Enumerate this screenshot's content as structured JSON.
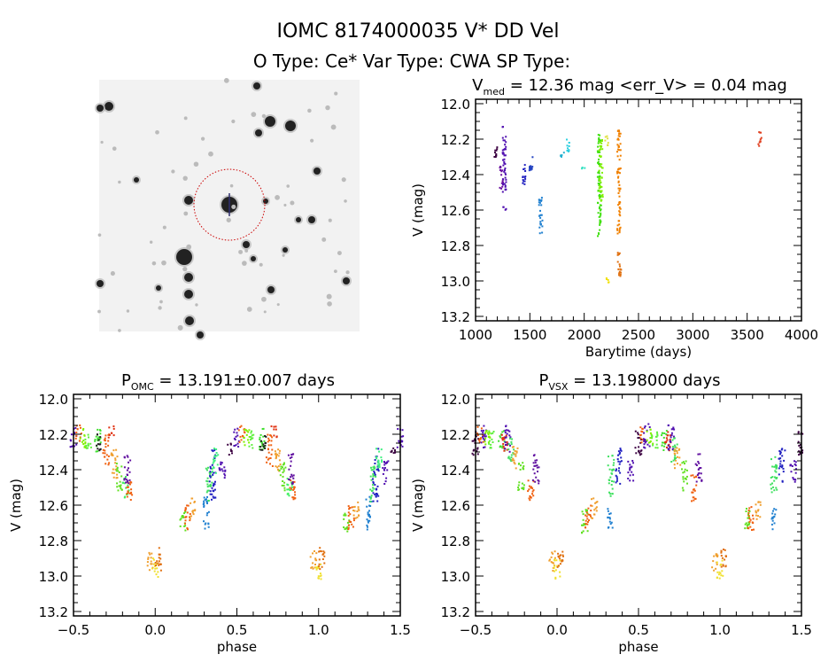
{
  "header": {
    "title": "IOMC 8174000035    V* DD Vel",
    "subtitle": "O Type: Ce*   Var Type: CWA   SP Type:"
  },
  "image_panel": {
    "circle_color": "#cc0000"
  },
  "chart_data": [
    {
      "type": "scatter",
      "title_main": "V",
      "title_sub": "med",
      "title_rest": " = 12.36 mag <err_V> = 0.04 mag",
      "xlabel": "Barytime (days)",
      "ylabel": "V (mag)",
      "xlim": [
        1000,
        4000
      ],
      "ylim": [
        13.225,
        11.975
      ],
      "y_inverted": true,
      "xticks": [
        1000,
        1500,
        2000,
        2500,
        3000,
        3500,
        4000
      ],
      "xtick_labels": [
        "1000",
        "1500",
        "2000",
        "2500",
        "3000",
        "3500",
        "4000"
      ],
      "yticks": [
        12.0,
        12.2,
        12.4,
        12.6,
        12.8,
        13.0,
        13.2
      ],
      "ytick_labels": [
        "12.0",
        "12.2",
        "12.4",
        "12.6",
        "12.8",
        "13.0",
        "13.2"
      ],
      "xminor": 100,
      "yminor": 0.05,
      "clusters": [
        {
          "x": 1190,
          "ymin": 12.24,
          "ymax": 12.32,
          "color": "#3a0040"
        },
        {
          "x": 1240,
          "ymin": 12.35,
          "ymax": 12.48,
          "color": "#6a10a0"
        },
        {
          "x": 1265,
          "ymin": 12.13,
          "ymax": 12.5,
          "color": "#5010b0"
        },
        {
          "x": 1268,
          "ymin": 12.58,
          "ymax": 12.6,
          "color": "#5010b0"
        },
        {
          "x": 1450,
          "ymin": 12.34,
          "ymax": 12.46,
          "color": "#2020c0"
        },
        {
          "x": 1510,
          "ymin": 12.29,
          "ymax": 12.38,
          "color": "#2040c0"
        },
        {
          "x": 1600,
          "ymin": 12.53,
          "ymax": 12.74,
          "color": "#2080d0"
        },
        {
          "x": 1800,
          "ymin": 12.26,
          "ymax": 12.3,
          "color": "#20b0d0"
        },
        {
          "x": 1850,
          "ymin": 12.2,
          "ymax": 12.28,
          "color": "#30d0e0"
        },
        {
          "x": 1990,
          "ymin": 12.34,
          "ymax": 12.37,
          "color": "#30e0c0"
        },
        {
          "x": 2140,
          "ymin": 12.15,
          "ymax": 12.75,
          "color": "#40e010"
        },
        {
          "x": 2155,
          "ymin": 12.2,
          "ymax": 12.55,
          "color": "#80f000"
        },
        {
          "x": 2210,
          "ymin": 12.18,
          "ymax": 12.24,
          "color": "#e0e040"
        },
        {
          "x": 2215,
          "ymin": 12.98,
          "ymax": 13.02,
          "color": "#f0e000"
        },
        {
          "x": 2320,
          "ymin": 12.15,
          "ymax": 12.75,
          "color": "#f08000"
        },
        {
          "x": 2325,
          "ymin": 12.84,
          "ymax": 12.98,
          "color": "#e07010"
        },
        {
          "x": 3620,
          "ymin": 12.16,
          "ymax": 12.24,
          "color": "#e04020"
        }
      ]
    },
    {
      "type": "scatter",
      "title_main": "P",
      "title_sub": "OMC",
      "title_rest": " = 13.191±0.007 days",
      "xlabel": "phase",
      "ylabel": "V (mag)",
      "xlim": [
        -0.5,
        1.5
      ],
      "ylim": [
        13.225,
        11.975
      ],
      "y_inverted": true,
      "xticks": [
        -0.5,
        0.0,
        0.5,
        1.0,
        1.5
      ],
      "xtick_labels": [
        "−0.5",
        "0.0",
        "0.5",
        "1.0",
        "1.5"
      ],
      "yticks": [
        12.0,
        12.2,
        12.4,
        12.6,
        12.8,
        13.0,
        13.2
      ],
      "ytick_labels": [
        "12.0",
        "12.2",
        "12.4",
        "12.6",
        "12.8",
        "13.0",
        "13.2"
      ],
      "xminor": 0.1,
      "yminor": 0.05,
      "phase_folded_repeat": true,
      "clusters": [
        {
          "x": 0.5,
          "ymin": 12.16,
          "ymax": 12.28,
          "color": "#5010b0"
        },
        {
          "x": 0.53,
          "ymin": 12.15,
          "ymax": 12.25,
          "color": "#f06010"
        },
        {
          "x": 0.56,
          "ymin": 12.17,
          "ymax": 12.28,
          "color": "#80f000"
        },
        {
          "x": 0.59,
          "ymin": 12.18,
          "ymax": 12.28,
          "color": "#60f040"
        },
        {
          "x": 0.65,
          "ymin": 12.16,
          "ymax": 12.3,
          "color": "#40e030"
        },
        {
          "x": 0.66,
          "ymin": 12.2,
          "ymax": 12.3,
          "color": "#202020"
        },
        {
          "x": 0.7,
          "ymin": 12.2,
          "ymax": 12.38,
          "color": "#f06010"
        },
        {
          "x": 0.73,
          "ymin": 12.15,
          "ymax": 12.22,
          "color": "#e03010"
        },
        {
          "x": 0.75,
          "ymin": 12.28,
          "ymax": 12.45,
          "color": "#f0a030"
        },
        {
          "x": 0.78,
          "ymin": 12.36,
          "ymax": 12.52,
          "color": "#60e020"
        },
        {
          "x": 0.82,
          "ymin": 12.44,
          "ymax": 12.56,
          "color": "#40f060"
        },
        {
          "x": 0.84,
          "ymin": 12.45,
          "ymax": 12.58,
          "color": "#f06010"
        },
        {
          "x": 0.83,
          "ymin": 12.31,
          "ymax": 12.48,
          "color": "#6010a0"
        },
        {
          "x": 0.97,
          "ymin": 12.86,
          "ymax": 12.97,
          "color": "#f0a030"
        },
        {
          "x": 1.0,
          "ymin": 12.9,
          "ymax": 13.02,
          "color": "#f0e030"
        },
        {
          "x": 1.02,
          "ymin": 12.84,
          "ymax": 12.97,
          "color": "#e07010"
        },
        {
          "x": 0.17,
          "ymin": 12.62,
          "ymax": 12.75,
          "color": "#60e020"
        },
        {
          "x": 0.2,
          "ymin": 12.6,
          "ymax": 12.74,
          "color": "#f06010"
        },
        {
          "x": 0.23,
          "ymin": 12.56,
          "ymax": 12.68,
          "color": "#f0a030"
        },
        {
          "x": 0.31,
          "ymin": 12.55,
          "ymax": 12.74,
          "color": "#2080d0"
        },
        {
          "x": 0.33,
          "ymin": 12.38,
          "ymax": 12.58,
          "color": "#40e060"
        },
        {
          "x": 0.35,
          "ymin": 12.28,
          "ymax": 12.58,
          "color": "#2020c0"
        },
        {
          "x": 0.37,
          "ymin": 12.28,
          "ymax": 12.42,
          "color": "#40f080"
        },
        {
          "x": 0.41,
          "ymin": 12.35,
          "ymax": 12.48,
          "color": "#5010b0"
        },
        {
          "x": 0.46,
          "ymin": 12.25,
          "ymax": 12.32,
          "color": "#3a0040"
        }
      ]
    },
    {
      "type": "scatter",
      "title_main": "P",
      "title_sub": "VSX",
      "title_rest": " = 13.198000 days",
      "xlabel": "phase",
      "ylabel": "V (mag)",
      "xlim": [
        -0.5,
        1.5
      ],
      "ylim": [
        13.225,
        11.975
      ],
      "y_inverted": true,
      "xticks": [
        -0.5,
        0.0,
        0.5,
        1.0,
        1.5
      ],
      "xtick_labels": [
        "−0.5",
        "0.0",
        "0.5",
        "1.0",
        "1.5"
      ],
      "yticks": [
        12.0,
        12.2,
        12.4,
        12.6,
        12.8,
        13.0,
        13.2
      ],
      "ytick_labels": [
        "12.0",
        "12.2",
        "12.4",
        "12.6",
        "12.8",
        "13.0",
        "13.2"
      ],
      "xminor": 0.1,
      "yminor": 0.05,
      "phase_folded_repeat": true,
      "clusters": [
        {
          "x": 0.5,
          "ymin": 12.18,
          "ymax": 12.32,
          "color": "#3a0040"
        },
        {
          "x": 0.53,
          "ymin": 12.15,
          "ymax": 12.25,
          "color": "#f06010"
        },
        {
          "x": 0.55,
          "ymin": 12.14,
          "ymax": 12.28,
          "color": "#5010b0"
        },
        {
          "x": 0.57,
          "ymin": 12.17,
          "ymax": 12.28,
          "color": "#80f000"
        },
        {
          "x": 0.6,
          "ymin": 12.18,
          "ymax": 12.28,
          "color": "#60f040"
        },
        {
          "x": 0.66,
          "ymin": 12.18,
          "ymax": 12.3,
          "color": "#40e030"
        },
        {
          "x": 0.68,
          "ymin": 12.17,
          "ymax": 12.3,
          "color": "#e03010"
        },
        {
          "x": 0.7,
          "ymin": 12.14,
          "ymax": 12.3,
          "color": "#5010b0"
        },
        {
          "x": 0.72,
          "ymin": 12.22,
          "ymax": 12.36,
          "color": "#40e060"
        },
        {
          "x": 0.74,
          "ymin": 12.27,
          "ymax": 12.4,
          "color": "#f0a030"
        },
        {
          "x": 0.78,
          "ymin": 12.35,
          "ymax": 12.52,
          "color": "#60e020"
        },
        {
          "x": 0.84,
          "ymin": 12.43,
          "ymax": 12.58,
          "color": "#f06010"
        },
        {
          "x": 0.87,
          "ymin": 12.31,
          "ymax": 12.48,
          "color": "#6010a0"
        },
        {
          "x": 0.97,
          "ymin": 12.86,
          "ymax": 12.97,
          "color": "#f0a030"
        },
        {
          "x": 1.0,
          "ymin": 12.9,
          "ymax": 13.02,
          "color": "#f0e030"
        },
        {
          "x": 1.02,
          "ymin": 12.84,
          "ymax": 12.97,
          "color": "#e07010"
        },
        {
          "x": 0.17,
          "ymin": 12.62,
          "ymax": 12.76,
          "color": "#60e020"
        },
        {
          "x": 0.19,
          "ymin": 12.6,
          "ymax": 12.74,
          "color": "#f06010"
        },
        {
          "x": 0.23,
          "ymin": 12.56,
          "ymax": 12.68,
          "color": "#f0a030"
        },
        {
          "x": 0.33,
          "ymin": 12.62,
          "ymax": 12.74,
          "color": "#2080d0"
        },
        {
          "x": 0.33,
          "ymin": 12.32,
          "ymax": 12.55,
          "color": "#40e060"
        },
        {
          "x": 0.38,
          "ymin": 12.28,
          "ymax": 12.48,
          "color": "#2020c0"
        },
        {
          "x": 0.45,
          "ymin": 12.35,
          "ymax": 12.48,
          "color": "#5010b0"
        }
      ]
    }
  ]
}
